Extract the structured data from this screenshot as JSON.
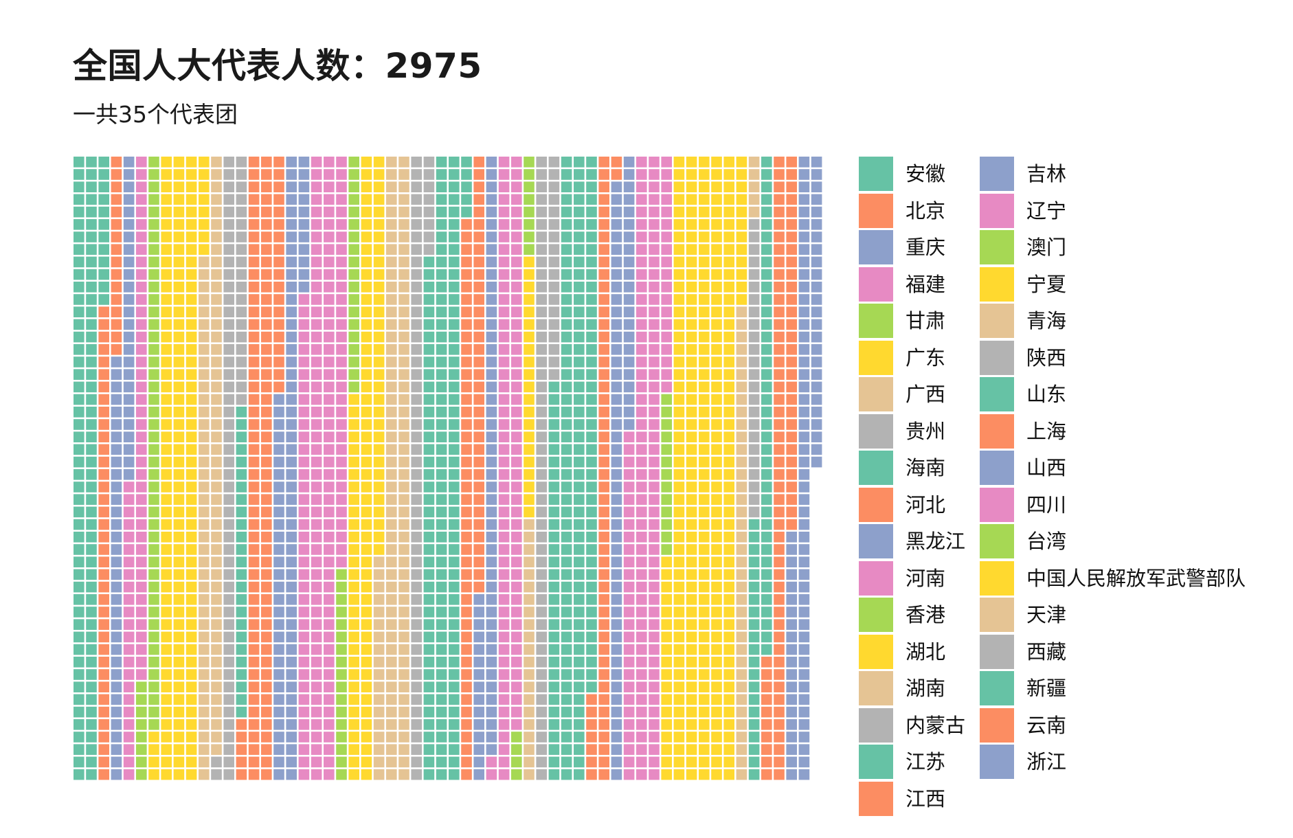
{
  "title": "全国人大代表人数：2975",
  "subtitle": "一共35个代表团",
  "chart_data": {
    "type": "waffle",
    "title": "全国人大代表人数：2975",
    "subtitle": "一共35个代表团",
    "total": 2975,
    "grid_rows": 50,
    "fill_order": "column-major, top to bottom, left to right",
    "palette": [
      "#66c2a5",
      "#fc8d62",
      "#8da0cb",
      "#e78ac3",
      "#a6d854",
      "#ffd92f",
      "#e5c494",
      "#b3b3b3"
    ],
    "legend_position": "right",
    "series": [
      {
        "name": "安徽",
        "value": 112,
        "color": "#66c2a5"
      },
      {
        "name": "北京",
        "value": 54,
        "color": "#fc8d62"
      },
      {
        "name": "重庆",
        "value": 60,
        "color": "#8da0cb"
      },
      {
        "name": "福建",
        "value": 66,
        "color": "#e78ac3"
      },
      {
        "name": "甘肃",
        "value": 54,
        "color": "#a6d854"
      },
      {
        "name": "广东",
        "value": 162,
        "color": "#ffd92f"
      },
      {
        "name": "广西",
        "value": 90,
        "color": "#e5c494"
      },
      {
        "name": "贵州",
        "value": 72,
        "color": "#b3b3b3"
      },
      {
        "name": "海南",
        "value": 25,
        "color": "#66c2a5"
      },
      {
        "name": "河北",
        "value": 124,
        "color": "#fc8d62"
      },
      {
        "name": "黑龙江",
        "value": 92,
        "color": "#8da0cb"
      },
      {
        "name": "河南",
        "value": 172,
        "color": "#e78ac3"
      },
      {
        "name": "香港",
        "value": 36,
        "color": "#a6d854"
      },
      {
        "name": "湖北",
        "value": 113,
        "color": "#ffd92f"
      },
      {
        "name": "湖南",
        "value": 118,
        "color": "#e5c494"
      },
      {
        "name": "内蒙古",
        "value": 58,
        "color": "#b3b3b3"
      },
      {
        "name": "江苏",
        "value": 147,
        "color": "#66c2a5"
      },
      {
        "name": "江西",
        "value": 80,
        "color": "#fc8d62"
      },
      {
        "name": "吉林",
        "value": 63,
        "color": "#8da0cb"
      },
      {
        "name": "辽宁",
        "value": 98,
        "color": "#e78ac3"
      },
      {
        "name": "澳门",
        "value": 12,
        "color": "#a6d854"
      },
      {
        "name": "宁夏",
        "value": 21,
        "color": "#ffd92f"
      },
      {
        "name": "青海",
        "value": 21,
        "color": "#e5c494"
      },
      {
        "name": "陕西",
        "value": 68,
        "color": "#b3b3b3"
      },
      {
        "name": "山东",
        "value": 175,
        "color": "#66c2a5"
      },
      {
        "name": "上海",
        "value": 59,
        "color": "#fc8d62"
      },
      {
        "name": "山西",
        "value": 70,
        "color": "#8da0cb"
      },
      {
        "name": "四川",
        "value": 147,
        "color": "#e78ac3"
      },
      {
        "name": "台湾",
        "value": 13,
        "color": "#a6d854"
      },
      {
        "name": "中国人民解放军武警部队",
        "value": 280,
        "color": "#ffd92f"
      },
      {
        "name": "天津",
        "value": 43,
        "color": "#e5c494"
      },
      {
        "name": "西藏",
        "value": 24,
        "color": "#b3b3b3"
      },
      {
        "name": "新疆",
        "value": 61,
        "color": "#66c2a5"
      },
      {
        "name": "云南",
        "value": 90,
        "color": "#fc8d62"
      },
      {
        "name": "浙江",
        "value": 95,
        "color": "#8da0cb"
      }
    ]
  }
}
